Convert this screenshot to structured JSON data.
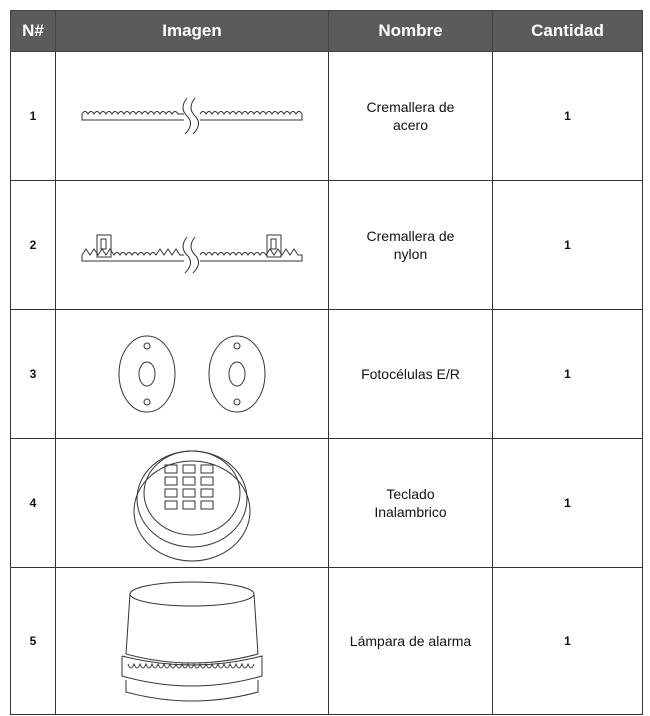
{
  "table": {
    "header": [
      "N#",
      "Imagen",
      "Nombre",
      "Cantidad"
    ],
    "rows": [
      [
        "1",
        "Cremallera de acero",
        "1"
      ],
      [
        "2",
        "Cremallera de nylon",
        "1"
      ],
      [
        "3",
        "Fotocélulas E/R",
        "1"
      ],
      [
        "4",
        "Teclado Inalambrico",
        "1"
      ],
      [
        "5",
        "Lámpara de alarma",
        "1"
      ]
    ]
  }
}
